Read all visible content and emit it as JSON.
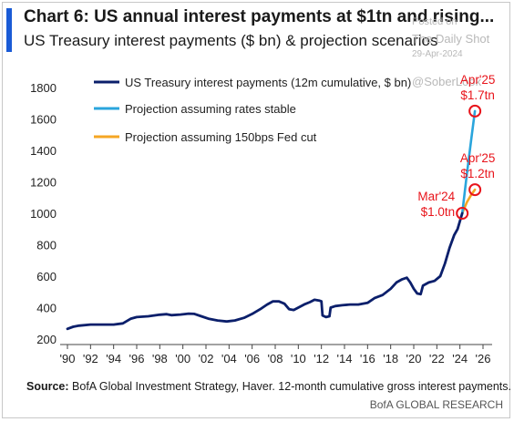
{
  "header": {
    "title": "Chart 6: US annual interest payments at $1tn and rising...",
    "subtitle": "US Treasury interest payments ($ bn) & projection scenarios"
  },
  "watermark": {
    "line1": "Posted on",
    "line2": "The Daily Shot",
    "line3": "29-Apr-2024",
    "line4": "@SoberLook"
  },
  "footer": {
    "source_label": "Source:",
    "source_text": "BofA Global Investment Strategy, Haver. 12-month cumulative gross interest payments.",
    "brand": "BofA GLOBAL RESEARCH"
  },
  "chart_data": {
    "type": "line",
    "ylim": [
      200,
      1900
    ],
    "xlim": [
      1990,
      2026.5
    ],
    "yticks": [
      200,
      400,
      600,
      800,
      1000,
      1200,
      1400,
      1600,
      1800
    ],
    "xticks": [
      {
        "value": 1990,
        "label": "'90"
      },
      {
        "value": 1992,
        "label": "'92"
      },
      {
        "value": 1994,
        "label": "'94"
      },
      {
        "value": 1996,
        "label": "'96"
      },
      {
        "value": 1998,
        "label": "'98"
      },
      {
        "value": 2000,
        "label": "'00"
      },
      {
        "value": 2002,
        "label": "'02"
      },
      {
        "value": 2004,
        "label": "'04"
      },
      {
        "value": 2006,
        "label": "'06"
      },
      {
        "value": 2008,
        "label": "'08"
      },
      {
        "value": 2010,
        "label": "'10"
      },
      {
        "value": 2012,
        "label": "'12"
      },
      {
        "value": 2014,
        "label": "'14"
      },
      {
        "value": 2016,
        "label": "'16"
      },
      {
        "value": 2018,
        "label": "'18"
      },
      {
        "value": 2020,
        "label": "'20"
      },
      {
        "value": 2022,
        "label": "'22"
      },
      {
        "value": 2024,
        "label": "'24"
      },
      {
        "value": 2026,
        "label": "'26"
      }
    ],
    "grid": false,
    "legend_position": "top-left",
    "series": [
      {
        "name": "US Treasury interest payments (12m cumulative, $ bn)",
        "color": "#0b1f6b",
        "points": [
          [
            1990,
            265
          ],
          [
            1990.5,
            278
          ],
          [
            1991,
            285
          ],
          [
            1992,
            292
          ],
          [
            1993,
            292
          ],
          [
            1994,
            292
          ],
          [
            1994.8,
            300
          ],
          [
            1995.5,
            330
          ],
          [
            1996,
            340
          ],
          [
            1997,
            345
          ],
          [
            1998,
            355
          ],
          [
            1998.6,
            358
          ],
          [
            1999,
            352
          ],
          [
            1999.8,
            356
          ],
          [
            2000.5,
            362
          ],
          [
            2001,
            360
          ],
          [
            2001.6,
            345
          ],
          [
            2002.2,
            330
          ],
          [
            2003,
            318
          ],
          [
            2003.8,
            312
          ],
          [
            2004.5,
            318
          ],
          [
            2005.3,
            335
          ],
          [
            2006,
            360
          ],
          [
            2006.8,
            395
          ],
          [
            2007.3,
            420
          ],
          [
            2007.8,
            440
          ],
          [
            2008.3,
            440
          ],
          [
            2008.8,
            425
          ],
          [
            2009.2,
            390
          ],
          [
            2009.6,
            385
          ],
          [
            2010,
            400
          ],
          [
            2010.5,
            420
          ],
          [
            2011,
            435
          ],
          [
            2011.4,
            450
          ],
          [
            2011.8,
            445
          ],
          [
            2012,
            440
          ],
          [
            2012.1,
            350
          ],
          [
            2012.4,
            340
          ],
          [
            2012.7,
            345
          ],
          [
            2012.8,
            400
          ],
          [
            2013.2,
            410
          ],
          [
            2013.8,
            415
          ],
          [
            2014.5,
            420
          ],
          [
            2015.2,
            420
          ],
          [
            2016,
            430
          ],
          [
            2016.6,
            460
          ],
          [
            2017.3,
            480
          ],
          [
            2018,
            520
          ],
          [
            2018.5,
            560
          ],
          [
            2019,
            580
          ],
          [
            2019.4,
            590
          ],
          [
            2019.7,
            560
          ],
          [
            2020,
            520
          ],
          [
            2020.3,
            490
          ],
          [
            2020.6,
            485
          ],
          [
            2020.8,
            540
          ],
          [
            2021.3,
            560
          ],
          [
            2021.8,
            570
          ],
          [
            2022.3,
            600
          ],
          [
            2022.7,
            680
          ],
          [
            2023.1,
            780
          ],
          [
            2023.5,
            860
          ],
          [
            2023.8,
            900
          ],
          [
            2024.2,
            1000
          ]
        ]
      },
      {
        "name": "Projection assuming rates stable",
        "color": "#2aa5dc",
        "points": [
          [
            2024.2,
            1000
          ],
          [
            2024.6,
            1250
          ],
          [
            2025.0,
            1480
          ],
          [
            2025.3,
            1650
          ]
        ]
      },
      {
        "name": "Projection assuming 150bps Fed cut",
        "color": "#f5a623",
        "points": [
          [
            2024.2,
            1000
          ],
          [
            2024.6,
            1070
          ],
          [
            2025.0,
            1120
          ],
          [
            2025.3,
            1150
          ]
        ]
      }
    ],
    "annotations": [
      {
        "x": 2024.2,
        "y": 1000,
        "line1": "Mar'24",
        "line2": "$1.0tn",
        "color": "#e8141b",
        "anchor": "left"
      },
      {
        "x": 2025.3,
        "y": 1150,
        "line1": "Apr'25",
        "line2": "$1.2tn",
        "color": "#e8141b",
        "anchor": "above"
      },
      {
        "x": 2025.3,
        "y": 1650,
        "line1": "Apr'25",
        "line2": "$1.7tn",
        "color": "#e8141b",
        "anchor": "above"
      }
    ]
  }
}
